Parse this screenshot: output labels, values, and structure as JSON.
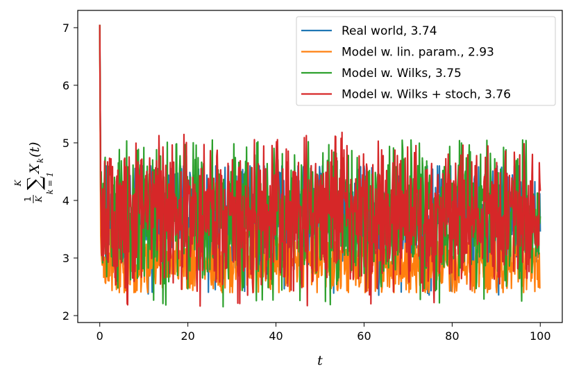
{
  "chart_data": {
    "type": "line",
    "title": "",
    "xlabel": "t",
    "ylabel": {
      "prefix": "1",
      "denom": "K",
      "sum_top": "K",
      "sum_sym": "∑",
      "sum_bottom": "k = 1",
      "term": "X",
      "term_sub": "k",
      "term_arg": "(t)"
    },
    "xlim": [
      -5,
      105
    ],
    "ylim": [
      1.88,
      7.3
    ],
    "x_ticks": [
      0,
      20,
      40,
      60,
      80,
      100
    ],
    "y_ticks": [
      2,
      3,
      4,
      5,
      6,
      7
    ],
    "grid": false,
    "legend_position": "top-right",
    "start_value": 7.05,
    "t_range": [
      0,
      100
    ],
    "series": [
      {
        "name": "Real world, 3.74",
        "color": "#1f77b4",
        "mean": 3.74,
        "low": 2.35,
        "high": 4.6
      },
      {
        "name": "Model w. lin. param., 2.93",
        "color": "#ff7f0e",
        "mean": 2.93,
        "low": 2.4,
        "high": 3.7
      },
      {
        "name": "Model w. Wilks, 3.75",
        "color": "#2ca02c",
        "mean": 3.75,
        "low": 2.15,
        "high": 5.05
      },
      {
        "name": "Model w. Wilks + stoch, 3.76",
        "color": "#d62728",
        "mean": 3.76,
        "low": 2.15,
        "high": 5.2
      }
    ]
  }
}
